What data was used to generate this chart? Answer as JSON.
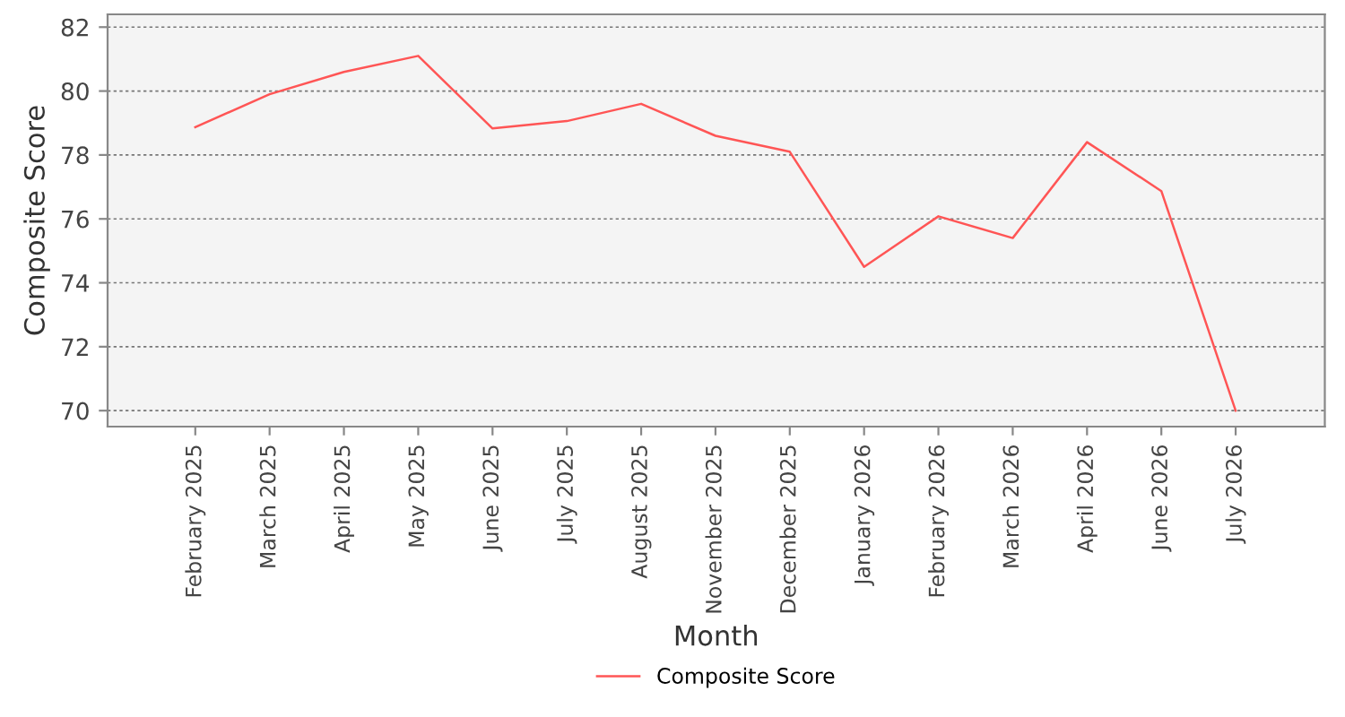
{
  "chart_data": {
    "type": "line",
    "xlabel": "Month",
    "ylabel": "Composite Score",
    "categories": [
      "February 2025",
      "March 2025",
      "April 2025",
      "May 2025",
      "June 2025",
      "July 2025",
      "August 2025",
      "November 2025",
      "December 2025",
      "January 2026",
      "February 2026",
      "March 2026",
      "April 2026",
      "June 2026",
      "July 2026"
    ],
    "series": [
      {
        "name": "Composite Score",
        "color": "#ff5555",
        "values": [
          78.87,
          79.9,
          80.6,
          81.1,
          78.83,
          79.06,
          79.6,
          78.6,
          78.1,
          74.5,
          76.08,
          75.4,
          78.4,
          76.87,
          70.0
        ]
      }
    ],
    "ylim": [
      69.5,
      82.4
    ],
    "yticks": [
      70,
      72,
      74,
      76,
      78,
      80,
      82
    ],
    "grid": "y",
    "legend": "bottom",
    "marker": "none",
    "line_style": "solid"
  }
}
